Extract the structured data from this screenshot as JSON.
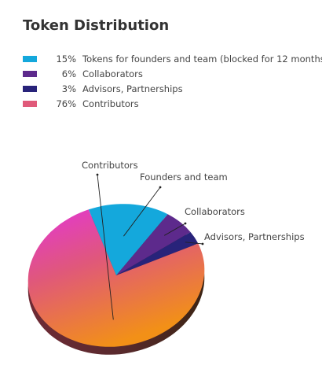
{
  "chart_data": {
    "type": "pie",
    "title": "Token Distribution",
    "legend_placement": "top-left",
    "slices": [
      {
        "label": "Contributors",
        "legend_label": "Contributors",
        "percent_label": "76%",
        "value": 76,
        "color": "#e05a7a"
      },
      {
        "label": "Founders and team",
        "legend_label": "Tokens for founders and team (blocked for 12 months)",
        "percent_label": "15%",
        "value": 15,
        "color": "#14a8dc"
      },
      {
        "label": "Collaborators",
        "legend_label": "Collaborators",
        "percent_label": "6%",
        "value": 6,
        "color": "#5d2a8c"
      },
      {
        "label": "Advisors, Partnerships",
        "legend_label": "Advisors, Partnerships",
        "percent_label": "3%",
        "value": 3,
        "color": "#28237a"
      }
    ],
    "legend_order": [
      1,
      2,
      3,
      0
    ]
  }
}
